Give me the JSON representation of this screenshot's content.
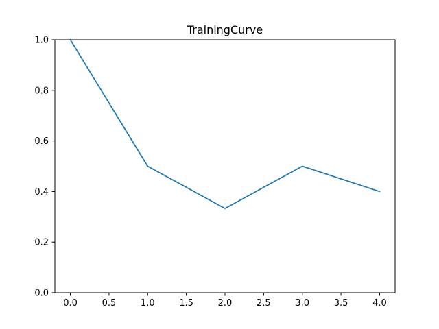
{
  "chart_data": {
    "type": "line",
    "title": "TrainingCurve",
    "xlabel": "",
    "ylabel": "",
    "xlim": [
      -0.2,
      4.2
    ],
    "ylim": [
      0.0,
      1.0
    ],
    "x_ticks": [
      0.0,
      0.5,
      1.0,
      1.5,
      2.0,
      2.5,
      3.0,
      3.5,
      4.0
    ],
    "x_tick_labels": [
      "0.0",
      "0.5",
      "1.0",
      "1.5",
      "2.0",
      "2.5",
      "3.0",
      "3.5",
      "4.0"
    ],
    "y_ticks": [
      0.0,
      0.2,
      0.4,
      0.6,
      0.8,
      1.0
    ],
    "y_tick_labels": [
      "0.0",
      "0.2",
      "0.4",
      "0.6",
      "0.8",
      "1.0"
    ],
    "grid": false,
    "series": [
      {
        "color": "#1f77b4",
        "x": [
          0,
          1,
          2,
          3,
          4
        ],
        "y": [
          1.0,
          0.5,
          0.333,
          0.5,
          0.4
        ]
      }
    ]
  }
}
